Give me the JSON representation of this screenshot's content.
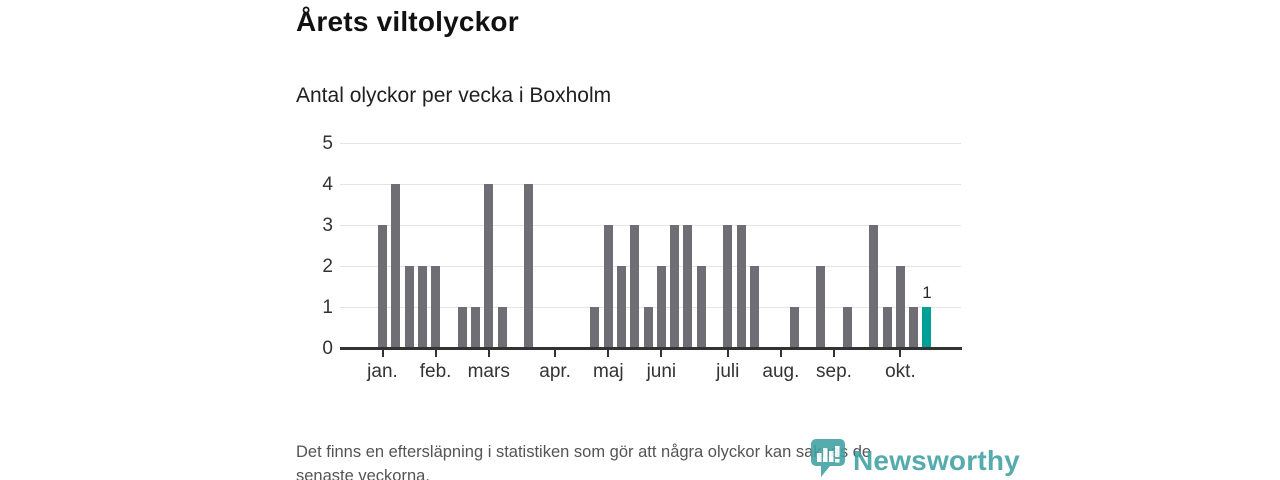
{
  "header": {
    "title": "Årets viltolyckor",
    "subtitle": "Antal olyckor per vecka i Boxholm"
  },
  "footer": {
    "note_line1": "Det finns en eftersläpning i statistiken som gör att några olyckor kan saknas de",
    "note_line2": "senaste veckorna.",
    "brand_name": "Newsworthy",
    "brand_icon": "newsworthy-speech-bubble-bar-chart-icon"
  },
  "chart_data": {
    "type": "bar",
    "title": "Årets viltolyckor",
    "subtitle": "Antal olyckor per vecka i Boxholm",
    "x_unit": "week of year",
    "n_weeks": 42,
    "values": [
      3,
      4,
      2,
      2,
      2,
      0,
      1,
      1,
      4,
      1,
      0,
      4,
      0,
      0,
      0,
      0,
      1,
      3,
      2,
      3,
      1,
      2,
      3,
      3,
      2,
      0,
      3,
      3,
      2,
      0,
      0,
      1,
      0,
      2,
      0,
      1,
      0,
      3,
      1,
      2,
      1,
      1
    ],
    "highlight_last_bar": true,
    "annotations": [
      {
        "week_index": 41,
        "text": "1"
      }
    ],
    "month_ticks": [
      {
        "label": "jan.",
        "week_index": 0
      },
      {
        "label": "feb.",
        "week_index": 4
      },
      {
        "label": "mars",
        "week_index": 8
      },
      {
        "label": "apr.",
        "week_index": 13
      },
      {
        "label": "maj",
        "week_index": 17
      },
      {
        "label": "juni",
        "week_index": 21
      },
      {
        "label": "juli",
        "week_index": 26
      },
      {
        "label": "aug.",
        "week_index": 30
      },
      {
        "label": "sep.",
        "week_index": 34
      },
      {
        "label": "okt.",
        "week_index": 39
      }
    ],
    "ylim": [
      0,
      5
    ],
    "yticks": [
      0,
      1,
      2,
      3,
      4,
      5
    ],
    "grid": "horizontal",
    "legend": "none",
    "colors": {
      "bar_default": "#6e6e74",
      "bar_highlight": "#00a099",
      "gridline": "#e4e4e4",
      "axis": "#333333",
      "tick_label": "#333333",
      "value_label": "#2b2b2b",
      "title": "#111111",
      "footer_text": "#545454",
      "brand_teal": "#3fa0a2"
    }
  }
}
